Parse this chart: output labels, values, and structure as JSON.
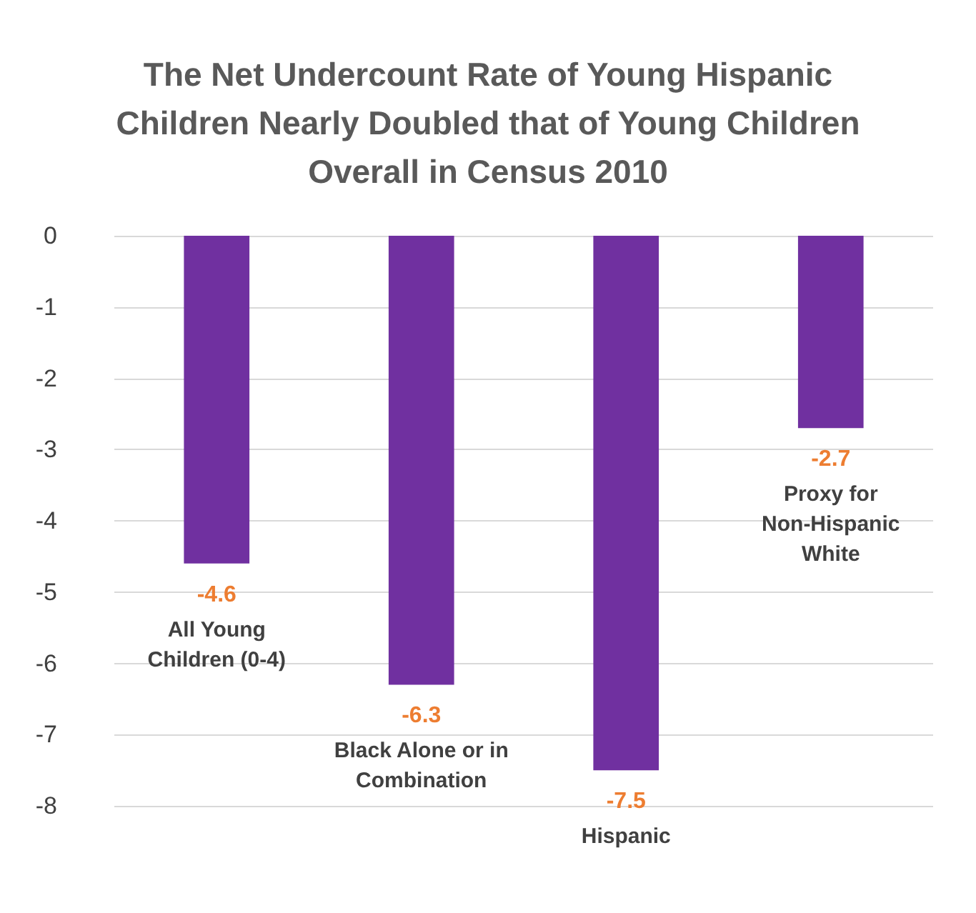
{
  "chart_data": {
    "type": "bar",
    "title": "The Net Undercount Rate of Young Hispanic Children Nearly Doubled that of Young Children Overall in Census 2010",
    "categories": [
      "All Young Children (0-4)",
      "Black Alone or in Combination",
      "Hispanic",
      "Proxy for Non-Hispanic White"
    ],
    "values": [
      -4.6,
      -6.3,
      -7.5,
      -2.7
    ],
    "color": "#7030a0",
    "ylim": [
      -8,
      0
    ],
    "yticks": [
      0,
      -1,
      -2,
      -3,
      -4,
      -5,
      -6,
      -7,
      -8
    ],
    "grid": "y",
    "data_labels": true
  }
}
